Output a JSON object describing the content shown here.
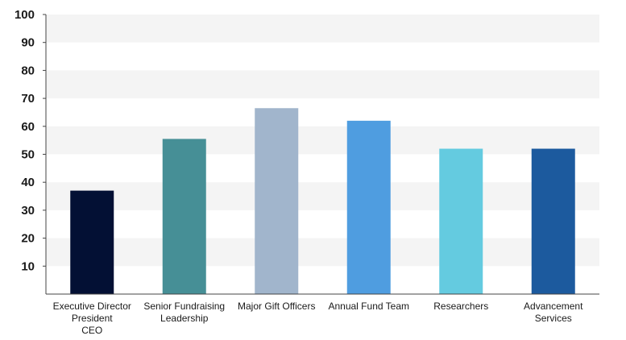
{
  "chart_data": {
    "type": "bar",
    "title": "",
    "xlabel": "",
    "ylabel": "",
    "ylim": [
      0,
      100
    ],
    "yticks": [
      10,
      20,
      30,
      40,
      50,
      60,
      70,
      80,
      90,
      100
    ],
    "grid": "alternating horizontal bands",
    "legend": "none",
    "categories": [
      [
        "Executive Director",
        "President",
        "CEO"
      ],
      [
        "Senior Fundraising",
        "Leadership"
      ],
      [
        "Major Gift Officers"
      ],
      [
        "Annual Fund Team"
      ],
      [
        "Researchers"
      ],
      [
        "Advancement",
        "Services"
      ]
    ],
    "values": [
      37,
      55.5,
      66.5,
      62,
      52,
      52
    ],
    "colors": [
      "#031034",
      "#468f96",
      "#a1b5cc",
      "#4f9de0",
      "#64cbe0",
      "#1c5a9e"
    ]
  }
}
